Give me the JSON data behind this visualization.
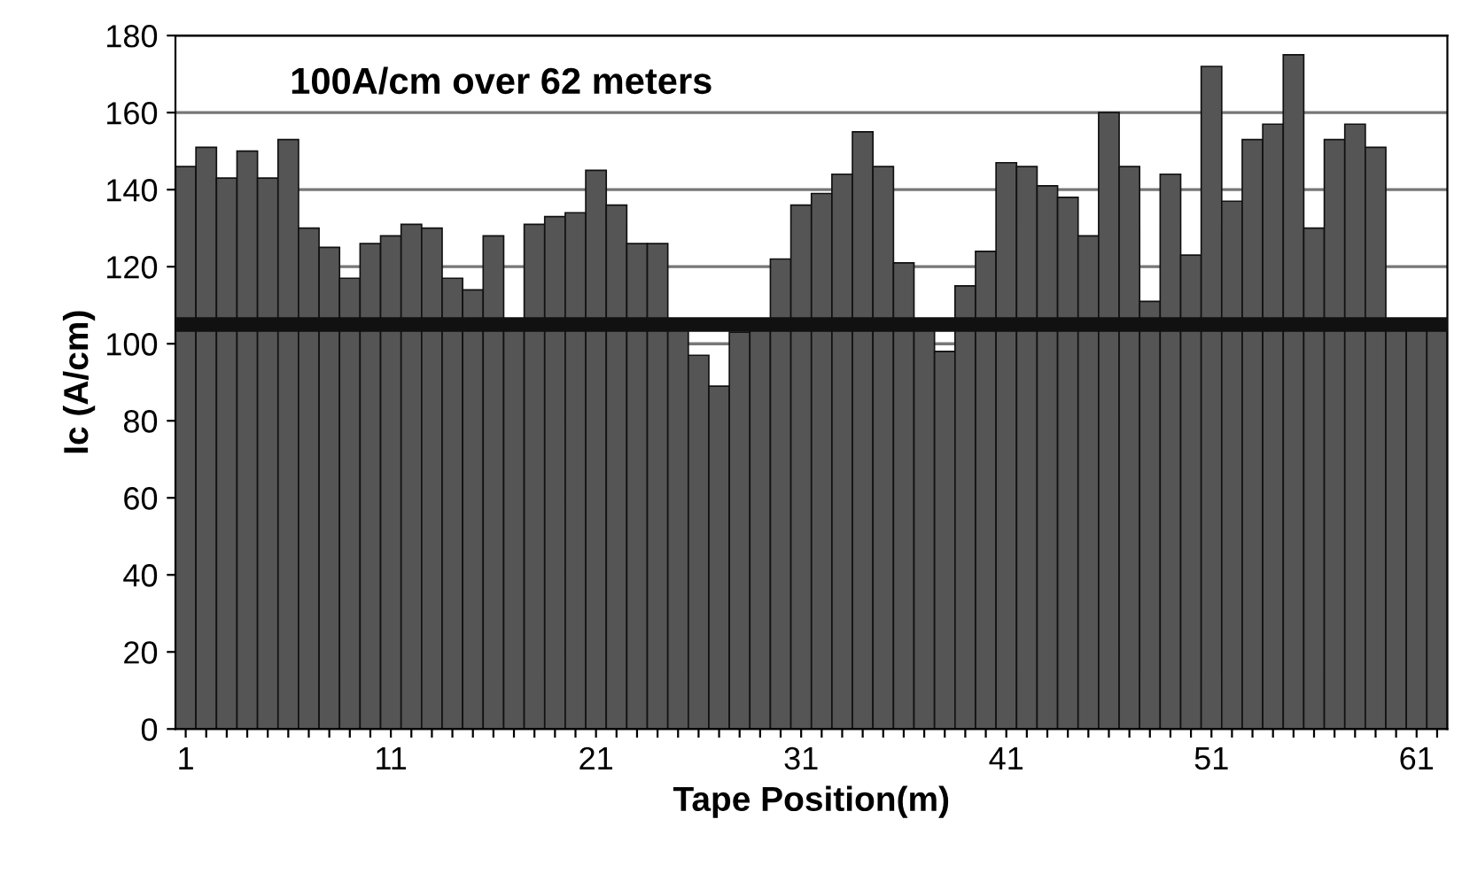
{
  "chart_data": {
    "type": "bar",
    "title": "100A/cm over 62 meters",
    "xlabel": "Tape Position(m)",
    "ylabel": "Ic (A/cm)",
    "categories": [
      "1",
      null,
      null,
      null,
      null,
      null,
      null,
      null,
      null,
      null,
      "11",
      null,
      null,
      null,
      null,
      null,
      null,
      null,
      null,
      null,
      "21",
      null,
      null,
      null,
      null,
      null,
      null,
      null,
      null,
      null,
      "31",
      null,
      null,
      null,
      null,
      null,
      null,
      null,
      null,
      null,
      "41",
      null,
      null,
      null,
      null,
      null,
      null,
      null,
      null,
      null,
      "51",
      null,
      null,
      null,
      null,
      null,
      null,
      null,
      null,
      null,
      "61",
      null
    ],
    "values": [
      146,
      151,
      143,
      150,
      143,
      153,
      130,
      125,
      117,
      126,
      128,
      131,
      130,
      117,
      114,
      128,
      104,
      131,
      133,
      134,
      145,
      136,
      126,
      126,
      104,
      97,
      89,
      103,
      104,
      122,
      136,
      139,
      144,
      155,
      146,
      121,
      104,
      98,
      115,
      124,
      147,
      146,
      141,
      138,
      128,
      160,
      146,
      111,
      144,
      123,
      172,
      137,
      153,
      157,
      175,
      130,
      153,
      157,
      151,
      104,
      104,
      104
    ],
    "color": "#555555",
    "ylim": [
      0,
      180
    ],
    "yticks": [
      0,
      20,
      40,
      60,
      80,
      100,
      120,
      140,
      160,
      180
    ],
    "grid": "y",
    "ref_lines": [
      {
        "axis": "y",
        "value": 105,
        "color": "#111111"
      }
    ]
  }
}
